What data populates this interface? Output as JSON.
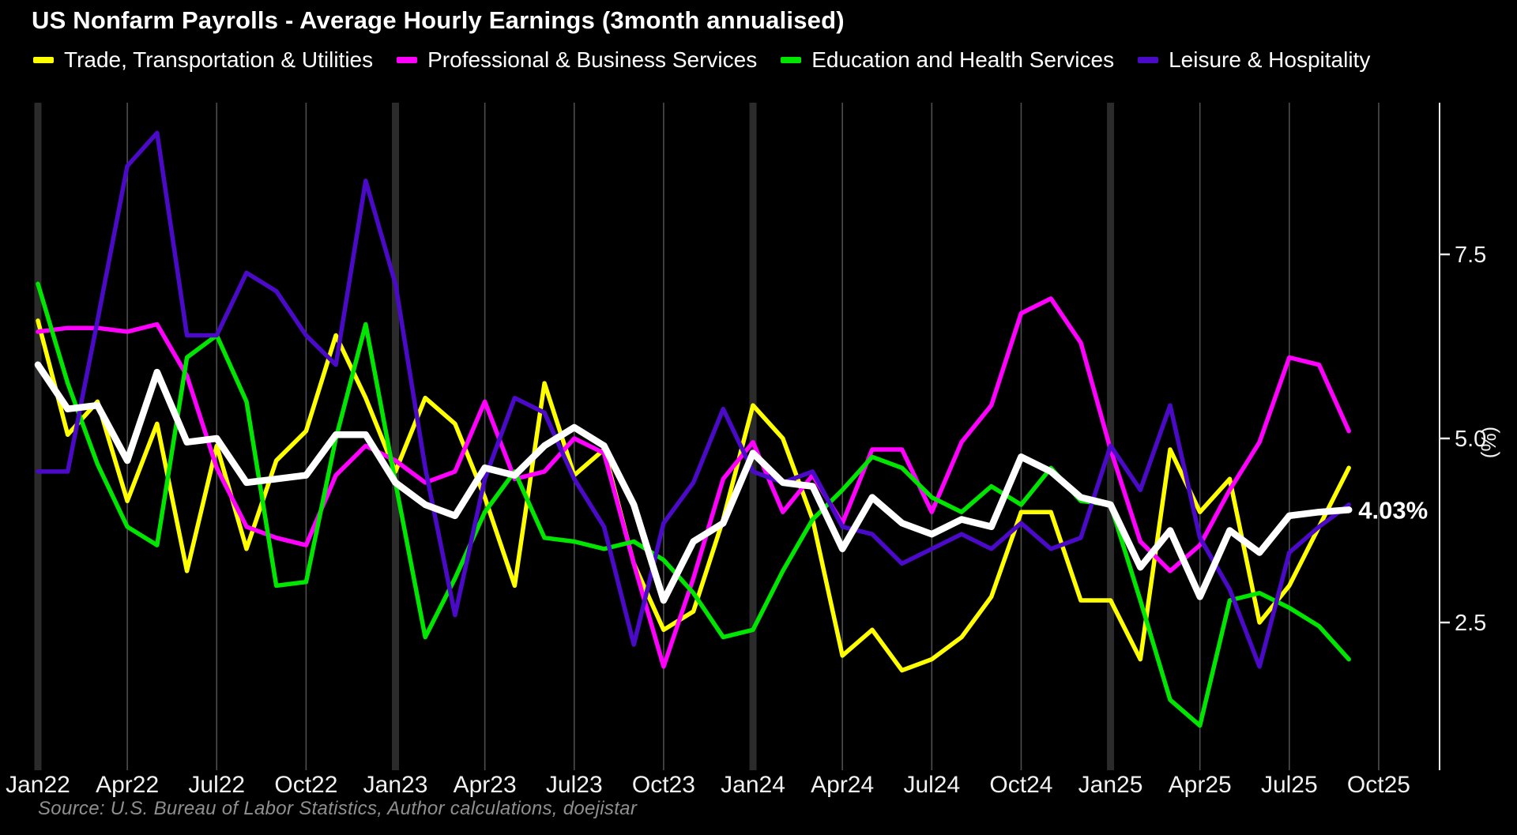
{
  "title": "US Nonfarm Payrolls - Average Hourly Earnings (3month annualised)",
  "source": "Source: U.S. Bureau of Labor Statistics, Author calculations, doejistar",
  "colors": {
    "background": "#000000",
    "grid_thin": "#4e4e4e",
    "grid_year_band": "#2b2b2b",
    "axis_line": "#e8e8e8",
    "tick_label": "#f2f2f2",
    "source_text": "#8f8f8f",
    "yellow": "#ffff00",
    "magenta": "#ff00ff",
    "green": "#00e600",
    "purple": "#4b0ac8",
    "white": "#ffffff"
  },
  "chart_data": {
    "type": "line",
    "title": "US Nonfarm Payrolls - Average Hourly Earnings (3month annualised)",
    "ylabel": "(%)",
    "yticks": [
      "2.5",
      "5.0",
      "7.5"
    ],
    "ytick_values": [
      2.5,
      5.0,
      7.5
    ],
    "ylim": [
      0.45,
      9.5
    ],
    "grid": "vertical-quarterly",
    "legend_position": "top",
    "x_tick_labels": [
      "Jan22",
      "Apr22",
      "Jul22",
      "Oct22",
      "Jan23",
      "Apr23",
      "Jul23",
      "Oct23",
      "Jan24",
      "Apr24",
      "Jul24",
      "Oct24",
      "Jan25",
      "Apr25",
      "Jul25",
      "Oct25"
    ],
    "year_band_ticks": [
      "Jan22",
      "Jan23",
      "Jan24",
      "Jan25"
    ],
    "months": [
      "Jan22",
      "Feb22",
      "Mar22",
      "Apr22",
      "May22",
      "Jun22",
      "Jul22",
      "Aug22",
      "Sep22",
      "Oct22",
      "Nov22",
      "Dec22",
      "Jan23",
      "Feb23",
      "Mar23",
      "Apr23",
      "May23",
      "Jun23",
      "Jul23",
      "Aug23",
      "Sep23",
      "Oct23",
      "Nov23",
      "Dec23",
      "Jan24",
      "Feb24",
      "Mar24",
      "Apr24",
      "May24",
      "Jun24",
      "Jul24",
      "Aug24",
      "Sep24",
      "Oct24",
      "Nov24",
      "Dec24",
      "Jan25",
      "Feb25",
      "Mar25",
      "Apr25",
      "May25",
      "Jun25",
      "Jul25",
      "Aug25",
      "Sep25"
    ],
    "series": [
      {
        "name": "Trade, Transportation & Utilities",
        "color": "#ffff00",
        "in_legend": true,
        "values": [
          6.6,
          5.05,
          5.5,
          4.15,
          5.2,
          3.2,
          4.9,
          3.5,
          4.7,
          5.1,
          6.4,
          5.55,
          4.55,
          5.55,
          5.2,
          4.2,
          3.0,
          5.75,
          4.5,
          4.85,
          3.3,
          2.4,
          2.65,
          3.9,
          5.45,
          5.0,
          3.9,
          2.05,
          2.4,
          1.85,
          2.0,
          2.3,
          2.85,
          4.0,
          4.0,
          2.8,
          2.8,
          2.0,
          4.85,
          4.0,
          4.45,
          2.5,
          3.0,
          3.8,
          4.6
        ]
      },
      {
        "name": "Professional & Business Services",
        "color": "#ff00ff",
        "in_legend": true,
        "values": [
          6.45,
          6.5,
          6.5,
          6.45,
          6.55,
          5.85,
          4.6,
          3.8,
          3.65,
          3.55,
          4.5,
          4.9,
          4.7,
          4.4,
          4.55,
          5.5,
          4.45,
          4.55,
          5.0,
          4.8,
          3.3,
          1.9,
          3.1,
          4.45,
          4.95,
          4.0,
          4.5,
          3.85,
          4.85,
          4.85,
          4.0,
          4.95,
          5.45,
          6.7,
          6.9,
          6.3,
          4.85,
          3.6,
          3.2,
          3.55,
          4.3,
          4.95,
          6.1,
          6.0,
          5.1
        ]
      },
      {
        "name": "Education and Health Services",
        "color": "#00e600",
        "in_legend": true,
        "values": [
          7.1,
          5.75,
          4.65,
          3.8,
          3.55,
          6.1,
          6.4,
          5.5,
          3.0,
          3.05,
          5.0,
          6.55,
          4.4,
          2.3,
          3.1,
          4.0,
          4.55,
          3.65,
          3.6,
          3.5,
          3.6,
          3.35,
          2.9,
          2.3,
          2.4,
          3.2,
          3.9,
          4.3,
          4.75,
          4.6,
          4.2,
          4.0,
          4.35,
          4.1,
          4.6,
          4.15,
          4.1,
          2.8,
          1.45,
          1.1,
          2.8,
          2.9,
          2.7,
          2.45,
          2.0
        ]
      },
      {
        "name": "Leisure & Hospitality",
        "color": "#4b0ac8",
        "in_legend": true,
        "values": [
          4.55,
          4.55,
          6.6,
          8.7,
          9.15,
          6.4,
          6.4,
          7.25,
          7.0,
          6.4,
          6.0,
          8.5,
          7.1,
          4.6,
          2.6,
          4.45,
          5.55,
          5.35,
          4.45,
          3.8,
          2.2,
          3.85,
          4.4,
          5.4,
          4.55,
          4.4,
          4.55,
          3.8,
          3.7,
          3.3,
          3.5,
          3.7,
          3.5,
          3.85,
          3.5,
          3.65,
          4.9,
          4.3,
          5.45,
          3.65,
          2.95,
          1.9,
          3.45,
          3.8,
          4.1
        ]
      },
      {
        "name": "",
        "color": "#ffffff",
        "in_legend": false,
        "emphasis": true,
        "end_label": "4.03%",
        "values": [
          6.0,
          5.4,
          5.45,
          4.7,
          5.9,
          4.95,
          5.0,
          4.4,
          4.45,
          4.5,
          5.05,
          5.05,
          4.4,
          4.1,
          3.95,
          4.6,
          4.5,
          4.9,
          5.15,
          4.9,
          4.1,
          2.8,
          3.6,
          3.85,
          4.8,
          4.4,
          4.35,
          3.5,
          4.2,
          3.85,
          3.7,
          3.9,
          3.8,
          4.75,
          4.55,
          4.2,
          4.1,
          3.25,
          3.75,
          2.85,
          3.75,
          3.45,
          3.95,
          4.0,
          4.03
        ]
      }
    ]
  }
}
